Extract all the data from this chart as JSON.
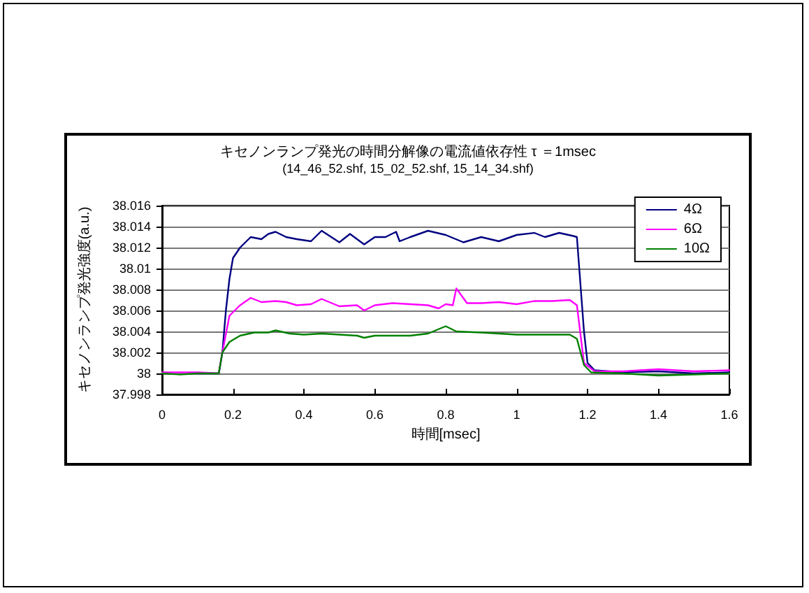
{
  "chart_data": {
    "type": "line",
    "title": "キセノンランプ発光の時間分解像の電流値依存性 τ ＝1msec",
    "subtitle": "(14_46_52.shf, 15_02_52.shf, 15_14_34.shf)",
    "xlabel": "時間[msec]",
    "ylabel": "キセノンランプ発光強度(a.u.)",
    "xlim": [
      0,
      1.6
    ],
    "xticks": [
      0,
      0.2,
      0.4,
      0.6,
      0.8,
      1,
      1.2,
      1.4,
      1.6
    ],
    "ylim": [
      37.998,
      38.016
    ],
    "yticks": [
      37.998,
      38,
      38.002,
      38.004,
      38.006,
      38.008,
      38.01,
      38.012,
      38.014,
      38.016
    ],
    "grid": "y",
    "legend": "top right",
    "marker": "none",
    "line_style": "solid",
    "series": [
      {
        "name": "4Ω",
        "color": "#000080",
        "x": [
          0.1,
          0.16,
          0.17,
          0.18,
          0.19,
          0.2,
          0.22,
          0.25,
          0.28,
          0.3,
          0.32,
          0.35,
          0.38,
          0.42,
          0.45,
          0.5,
          0.53,
          0.57,
          0.6,
          0.63,
          0.66,
          0.67,
          0.7,
          0.75,
          0.8,
          0.85,
          0.9,
          0.95,
          1,
          1.05,
          1.08,
          1.12,
          1.16,
          1.17,
          1.19,
          1.2,
          1.22,
          1.3,
          1.4,
          1.5,
          1.6
        ],
        "values": [
          38.0,
          38.0,
          38.002,
          38.006,
          38.009,
          38.011,
          38.012,
          38.013,
          38.0128,
          38.0133,
          38.0135,
          38.013,
          38.0128,
          38.0126,
          38.0136,
          38.0125,
          38.0133,
          38.0123,
          38.013,
          38.013,
          38.0135,
          38.0126,
          38.013,
          38.0136,
          38.0132,
          38.0125,
          38.013,
          38.0126,
          38.0132,
          38.0134,
          38.013,
          38.0134,
          38.0131,
          38.013,
          38.004,
          38.001,
          38.0003,
          38.0001,
          38.0002,
          38.0,
          38.0001
        ]
      },
      {
        "name": "6Ω",
        "color": "#ff00ff",
        "x": [
          0,
          0.05,
          0.1,
          0.16,
          0.17,
          0.19,
          0.22,
          0.25,
          0.28,
          0.32,
          0.35,
          0.38,
          0.42,
          0.45,
          0.5,
          0.55,
          0.57,
          0.6,
          0.65,
          0.7,
          0.75,
          0.78,
          0.8,
          0.82,
          0.83,
          0.86,
          0.9,
          0.95,
          1,
          1.05,
          1.1,
          1.15,
          1.17,
          1.19,
          1.22,
          1.3,
          1.4,
          1.5,
          1.6
        ],
        "values": [
          38.0001,
          38.0001,
          38.0001,
          38.0,
          38.002,
          38.0055,
          38.0065,
          38.0072,
          38.0068,
          38.0069,
          38.0068,
          38.0065,
          38.0066,
          38.0071,
          38.0064,
          38.0065,
          38.006,
          38.0065,
          38.0067,
          38.0066,
          38.0065,
          38.0062,
          38.0066,
          38.0065,
          38.0081,
          38.0067,
          38.0067,
          38.0068,
          38.0066,
          38.0069,
          38.0069,
          38.007,
          38.0065,
          38.001,
          38.0002,
          38.0002,
          38.0004,
          38.0002,
          38.0003
        ]
      },
      {
        "name": "10Ω",
        "color": "#008000",
        "x": [
          0,
          0.05,
          0.1,
          0.16,
          0.17,
          0.19,
          0.22,
          0.26,
          0.3,
          0.32,
          0.36,
          0.4,
          0.45,
          0.5,
          0.55,
          0.57,
          0.6,
          0.7,
          0.75,
          0.8,
          0.83,
          0.9,
          0.95,
          1,
          1.1,
          1.15,
          1.17,
          1.19,
          1.21,
          1.3,
          1.4,
          1.5,
          1.6
        ],
        "values": [
          38.0,
          37.9999,
          38.0,
          38.0,
          38.002,
          38.003,
          38.0036,
          38.0039,
          38.0039,
          38.0041,
          38.0038,
          38.0037,
          38.0038,
          38.0037,
          38.0036,
          38.0034,
          38.0036,
          38.0036,
          38.0038,
          38.0045,
          38.004,
          38.0039,
          38.0038,
          38.0037,
          38.0037,
          38.0037,
          38.0033,
          38.0008,
          38.0001,
          38.0,
          37.9998,
          37.9999,
          38.0
        ]
      }
    ]
  }
}
